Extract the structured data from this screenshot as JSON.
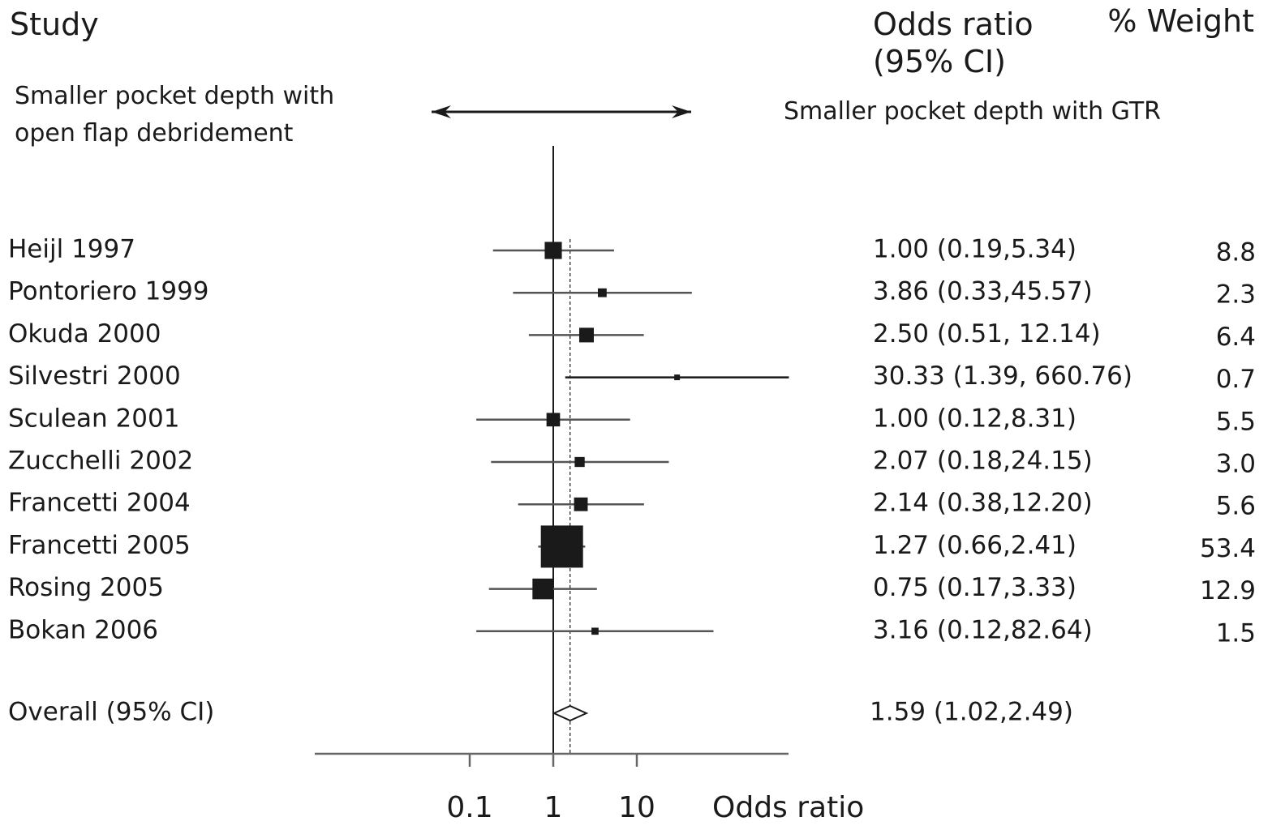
{
  "headers": {
    "study": "Study",
    "or_line1": "Odds ratio",
    "or_line2": "(95% CI)",
    "weight": "% Weight"
  },
  "directions": {
    "left_line1": "Smaller pocket depth with",
    "left_line2": "open flap debridement",
    "right": "Smaller pocket depth with GTR"
  },
  "chart_data": {
    "type": "forest",
    "x_scale": "log",
    "xlabel": "Odds ratio",
    "xticks": [
      {
        "value": 0.1,
        "label": "0.1"
      },
      {
        "value": 1,
        "label": "1"
      },
      {
        "value": 10,
        "label": "10"
      }
    ],
    "null_line": 1,
    "studies": [
      {
        "name": "Heijl 1997",
        "or": 1.0,
        "lo": 0.19,
        "hi": 5.34,
        "ci_text": "1.00 (0.19,5.34)",
        "weight": 8.8,
        "weight_text": "8.8"
      },
      {
        "name": "Pontoriero 1999",
        "or": 3.86,
        "lo": 0.33,
        "hi": 45.57,
        "ci_text": "3.86 (0.33,45.57)",
        "weight": 2.3,
        "weight_text": "2.3"
      },
      {
        "name": "Okuda 2000",
        "or": 2.5,
        "lo": 0.51,
        "hi": 12.14,
        "ci_text": "2.50 (0.51, 12.14)",
        "weight": 6.4,
        "weight_text": "6.4"
      },
      {
        "name": "Silvestri 2000",
        "or": 30.33,
        "lo": 1.39,
        "hi": 660.76,
        "ci_text": "30.33 (1.39, 660.76)",
        "weight": 0.7,
        "weight_text": "0.7"
      },
      {
        "name": "Sculean 2001",
        "or": 1.0,
        "lo": 0.12,
        "hi": 8.31,
        "ci_text": "1.00 (0.12,8.31)",
        "weight": 5.5,
        "weight_text": "5.5"
      },
      {
        "name": "Zucchelli 2002",
        "or": 2.07,
        "lo": 0.18,
        "hi": 24.15,
        "ci_text": "2.07 (0.18,24.15)",
        "weight": 3.0,
        "weight_text": "3.0"
      },
      {
        "name": "Francetti 2004",
        "or": 2.14,
        "lo": 0.38,
        "hi": 12.2,
        "ci_text": "2.14 (0.38,12.20)",
        "weight": 5.6,
        "weight_text": "5.6"
      },
      {
        "name": "Francetti 2005",
        "or": 1.27,
        "lo": 0.66,
        "hi": 2.41,
        "ci_text": "1.27 (0.66,2.41)",
        "weight": 53.4,
        "weight_text": "53.4"
      },
      {
        "name": "Rosing 2005",
        "or": 0.75,
        "lo": 0.17,
        "hi": 3.33,
        "ci_text": "0.75 (0.17,3.33)",
        "weight": 12.9,
        "weight_text": "12.9"
      },
      {
        "name": "Bokan 2006",
        "or": 3.16,
        "lo": 0.12,
        "hi": 82.64,
        "ci_text": "3.16 (0.12,82.64)",
        "weight": 1.5,
        "weight_text": "1.5"
      }
    ],
    "overall": {
      "name": "Overall (95% CI)",
      "or": 1.59,
      "lo": 1.02,
      "hi": 2.49,
      "ci_text": "1.59 (1.02,2.49)"
    },
    "colors": {
      "ink": "#1a1a1a",
      "ci_line": "#555555",
      "axis": "#666666"
    }
  }
}
